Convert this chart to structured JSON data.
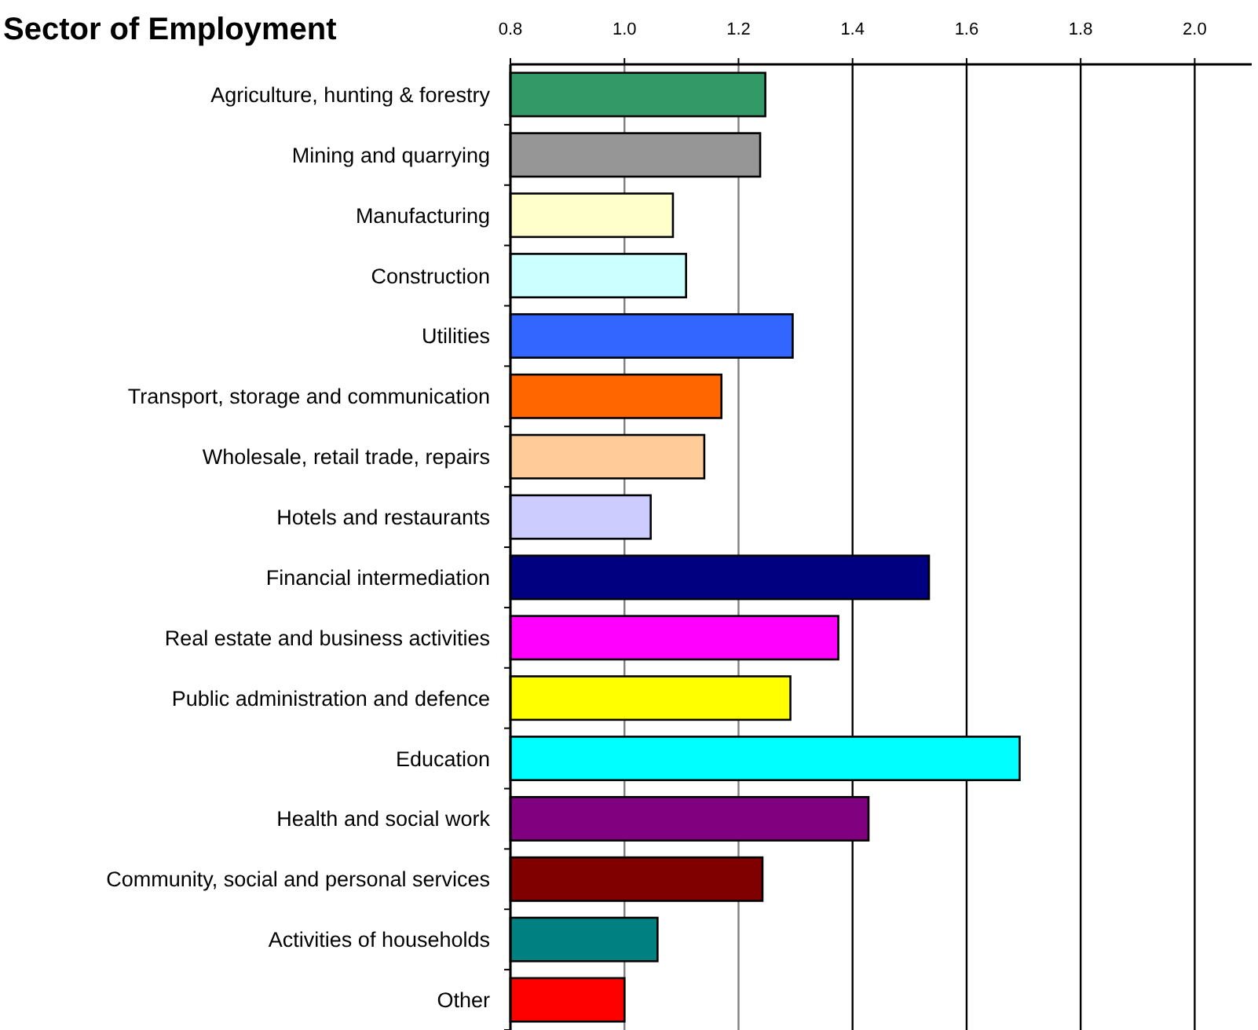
{
  "chart_data": {
    "type": "bar",
    "orientation": "horizontal",
    "title": "Sector of Employment",
    "categories": [
      "Agriculture, hunting & forestry",
      "Mining and quarrying",
      "Manufacturing",
      "Construction",
      "Utilities",
      "Transport, storage and communication",
      "Wholesale, retail trade, repairs",
      "Hotels and restaurants",
      "Financial intermediation",
      "Real estate and business activities",
      "Public administration and defence",
      "Education",
      "Health and social work",
      "Community, social and personal services",
      "Activities of households",
      "Other"
    ],
    "values": [
      1.247,
      1.238,
      1.085,
      1.108,
      1.295,
      1.17,
      1.14,
      1.046,
      1.534,
      1.375,
      1.291,
      1.693,
      1.428,
      1.242,
      1.058,
      1.0
    ],
    "colors": [
      "#339966",
      "#969696",
      "#ffffcc",
      "#ccffff",
      "#3366ff",
      "#ff6600",
      "#ffcc99",
      "#ccccff",
      "#000080",
      "#ff00ff",
      "#ffff00",
      "#00ffff",
      "#800080",
      "#800000",
      "#008080",
      "#ff0000"
    ],
    "xlim": [
      0.8,
      2.1
    ],
    "xticks": [
      {
        "value": 0.8,
        "label": "0.8"
      },
      {
        "value": 1.0,
        "label": "1.0"
      },
      {
        "value": 1.2,
        "label": "1.2"
      },
      {
        "value": 1.4,
        "label": "1.4"
      },
      {
        "value": 1.6,
        "label": "1.6"
      },
      {
        "value": 1.8,
        "label": "1.8"
      },
      {
        "value": 2.0,
        "label": "2.0"
      }
    ],
    "grid": "x"
  }
}
